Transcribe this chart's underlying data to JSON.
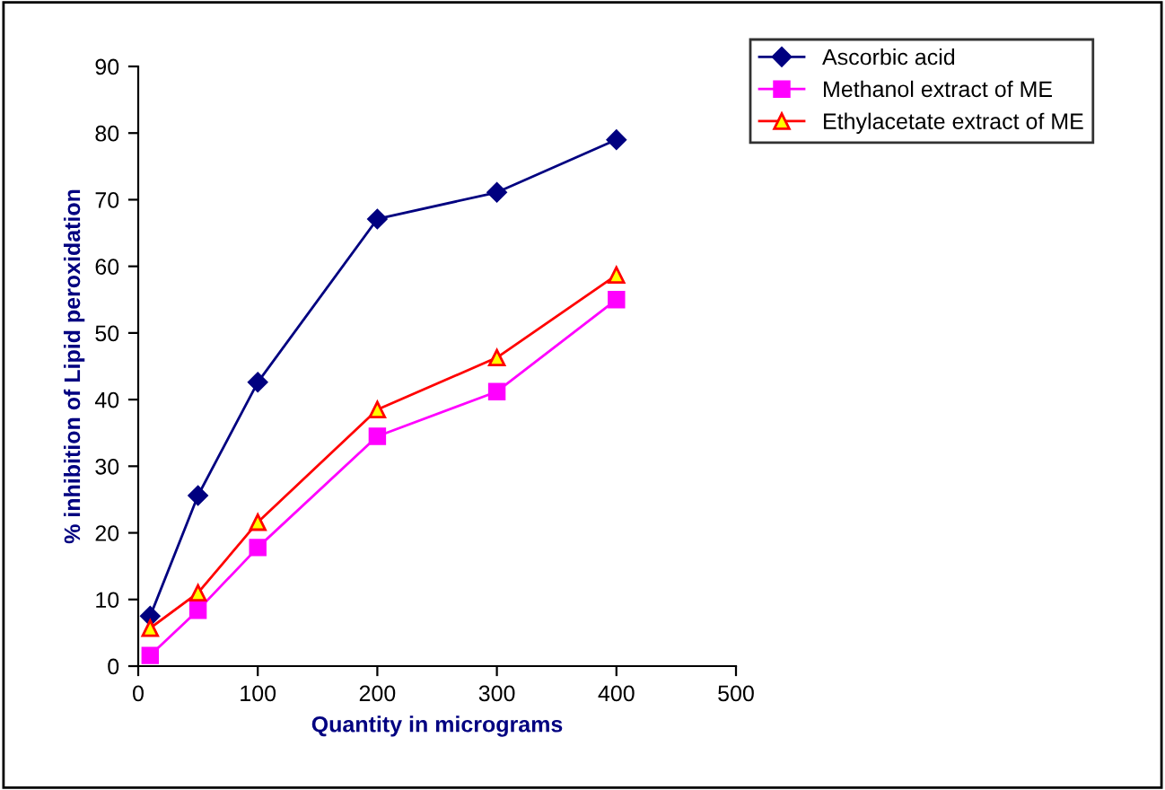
{
  "chart_data": {
    "type": "line",
    "xlabel": "Quantity in micrograms",
    "ylabel": "% inhibition of Lipid peroxidation",
    "x": [
      10,
      50,
      100,
      200,
      300,
      400
    ],
    "series": [
      {
        "name": "Ascorbic acid",
        "color": "#000080",
        "marker": "diamond",
        "values": [
          7.5,
          25.6,
          42.6,
          67.1,
          71.1,
          79
        ]
      },
      {
        "name": "Methanol extract of ME",
        "color": "#ff00ff",
        "marker": "square",
        "values": [
          1.6,
          8.4,
          17.8,
          34.5,
          41.2,
          55
        ]
      },
      {
        "name": "Ethylacetate extract of ME",
        "color": "#ff0000",
        "marker": "triangle",
        "values": [
          5.7,
          11,
          21.6,
          38.5,
          46.3,
          58.7
        ]
      }
    ],
    "xlim": [
      0,
      500
    ],
    "xticks": [
      0,
      100,
      200,
      300,
      400,
      500
    ],
    "ylim": [
      0,
      90
    ],
    "yticks": [
      0,
      10,
      20,
      30,
      40,
      50,
      60,
      70,
      80,
      90
    ],
    "grid": false,
    "legend": "top right"
  }
}
